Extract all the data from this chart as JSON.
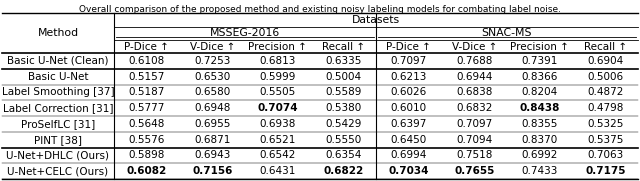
{
  "title": "Overall comparison of the proposed method and existing noisy labeling models for combating label noise.",
  "datasets_header": "Datasets",
  "col_groups": [
    {
      "name": "MSSEG-2016",
      "cols": [
        "P-Dice ↑",
        "V-Dice ↑",
        "Precision ↑",
        "Recall ↑"
      ]
    },
    {
      "name": "SNAC-MS",
      "cols": [
        "P-Dice ↑",
        "V-Dice ↑",
        "Precision ↑",
        "Recall ↑"
      ]
    }
  ],
  "rows": [
    {
      "method": "Basic U-Net (Clean)",
      "values": [
        0.6108,
        0.7253,
        0.6813,
        0.6335,
        0.7097,
        0.7688,
        0.7391,
        0.6904
      ],
      "bold": [],
      "thick_after": true
    },
    {
      "method": "Basic U-Net",
      "values": [
        0.5157,
        0.653,
        0.5999,
        0.5004,
        0.6213,
        0.6944,
        0.8366,
        0.5006
      ],
      "bold": [],
      "thick_after": false
    },
    {
      "method": "Label Smoothing [37]",
      "values": [
        0.5187,
        0.658,
        0.5505,
        0.5589,
        0.6026,
        0.6838,
        0.8204,
        0.4872
      ],
      "bold": [],
      "thick_after": false
    },
    {
      "method": "Label Correction [31]",
      "values": [
        0.5777,
        0.6948,
        0.7074,
        0.538,
        0.601,
        0.6832,
        0.8438,
        0.4798
      ],
      "bold": [
        2,
        6
      ],
      "thick_after": false
    },
    {
      "method": "ProSelfLC [31]",
      "values": [
        0.5648,
        0.6955,
        0.6938,
        0.5429,
        0.6397,
        0.7097,
        0.8355,
        0.5325
      ],
      "bold": [],
      "thick_after": false
    },
    {
      "method": "PINT [38]",
      "values": [
        0.5576,
        0.6871,
        0.6521,
        0.555,
        0.645,
        0.7094,
        0.837,
        0.5375
      ],
      "bold": [],
      "thick_after": true
    },
    {
      "method": "U-Net+DHLC (Ours)",
      "values": [
        0.5898,
        0.6943,
        0.6542,
        0.6354,
        0.6994,
        0.7518,
        0.6992,
        0.7063
      ],
      "bold": [],
      "thick_after": false
    },
    {
      "method": "U-Net+CELC (Ours)",
      "values": [
        0.6082,
        0.7156,
        0.6431,
        0.6822,
        0.7034,
        0.7655,
        0.7433,
        0.7175
      ],
      "bold": [
        0,
        1,
        3,
        4,
        5,
        7
      ],
      "thick_after": false
    }
  ],
  "bg_color": "#ffffff",
  "text_color": "#000000",
  "title_fontsize": 6.5,
  "header_fontsize": 7.8,
  "data_fontsize": 7.5
}
